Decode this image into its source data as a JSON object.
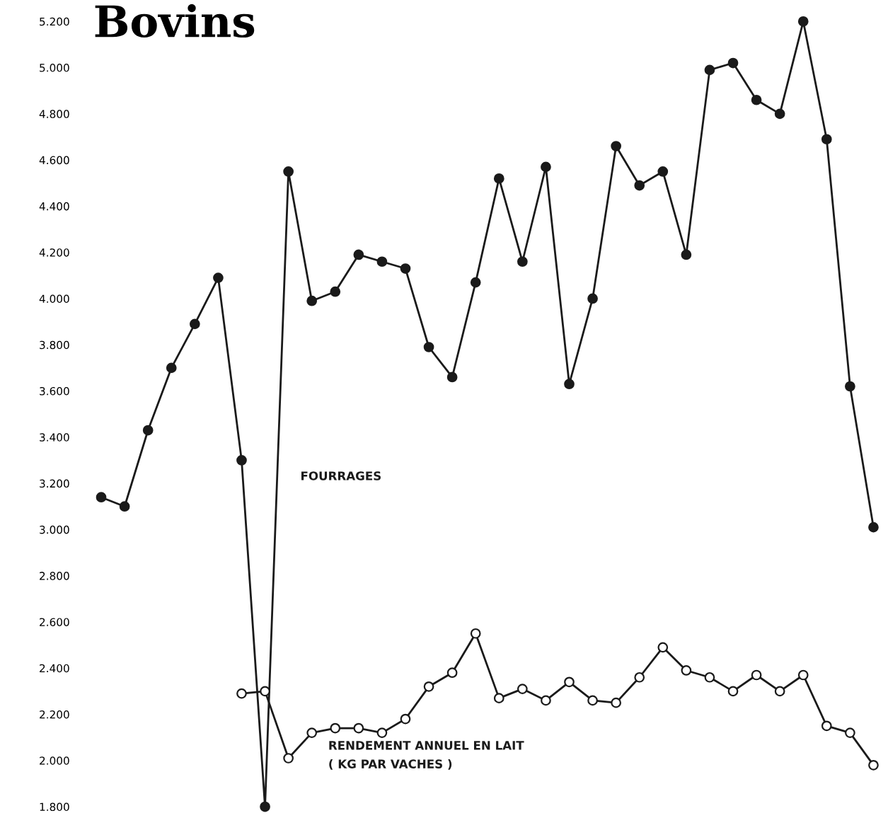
{
  "chart_data": {
    "type": "line",
    "title": "Bovins",
    "categories": [
      null,
      null,
      null,
      null,
      null,
      null,
      null,
      null,
      null,
      null,
      null,
      null,
      null,
      null,
      null,
      null,
      null,
      null,
      null,
      null,
      null,
      null,
      null,
      null,
      null,
      null,
      null,
      null,
      null,
      null,
      null,
      null,
      null,
      null
    ],
    "series": [
      {
        "name": "FOURRAGES",
        "color": "#1a1a1a",
        "values": [
          3140,
          3100,
          3430,
          3700,
          3890,
          4090,
          3300,
          1800,
          4550,
          3990,
          4030,
          4190,
          4160,
          4130,
          3790,
          3660,
          4070,
          4520,
          4160,
          4570,
          3630,
          4000,
          4660,
          4490,
          4550,
          4190,
          4990,
          5020,
          4860,
          4800,
          5200,
          4690,
          3620,
          3010
        ]
      },
      {
        "name": "RENDEMENT ANNUEL EN LAIT\n( KG PAR VACHES )",
        "color": "#1a1a1a",
        "values": [
          null,
          null,
          null,
          null,
          null,
          null,
          2290,
          2300,
          2010,
          2120,
          2140,
          2140,
          2120,
          2180,
          2320,
          2380,
          2550,
          2270,
          2310,
          2260,
          2340,
          2260,
          2250,
          2360,
          2490,
          2390,
          2360,
          2300,
          2370,
          2300,
          2370,
          2150,
          2120,
          1980
        ]
      }
    ],
    "ylim": [
      1800,
      5200
    ],
    "yticks": [
      {
        "value": 1800,
        "label": "1.800"
      },
      {
        "value": 2000,
        "label": "2.000"
      },
      {
        "value": 2200,
        "label": "2.200"
      },
      {
        "value": 2400,
        "label": "2.400"
      },
      {
        "value": 2600,
        "label": "2.600"
      },
      {
        "value": 2800,
        "label": "2.800"
      },
      {
        "value": 3000,
        "label": "3.000"
      },
      {
        "value": 3200,
        "label": "3.200"
      },
      {
        "value": 3400,
        "label": "3.400"
      },
      {
        "value": 3600,
        "label": "3.600"
      },
      {
        "value": 3800,
        "label": "3.800"
      },
      {
        "value": 4000,
        "label": "4.000"
      },
      {
        "value": 4200,
        "label": "4.200"
      },
      {
        "value": 4400,
        "label": "4.400"
      },
      {
        "value": 4600,
        "label": "4.600"
      },
      {
        "value": 4800,
        "label": "4.800"
      },
      {
        "value": 5000,
        "label": "5.000"
      },
      {
        "value": 5200,
        "label": "5.200"
      }
    ],
    "grid": false,
    "legend": false,
    "marker": "circle",
    "line_style": "solid"
  }
}
